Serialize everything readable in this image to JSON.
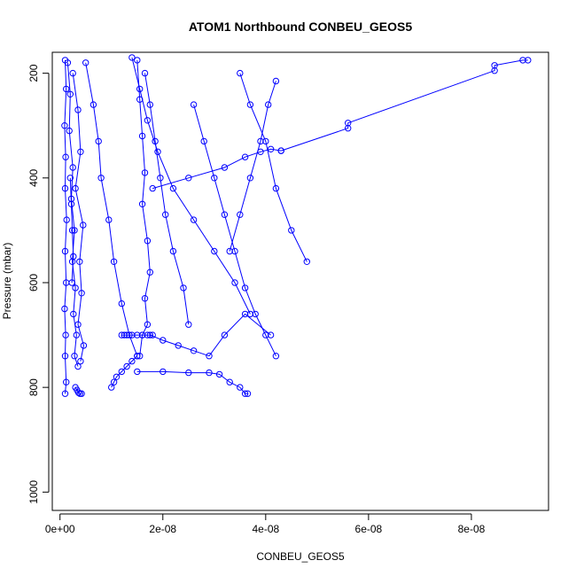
{
  "chart_data": {
    "type": "scatter",
    "title": "ATOM1 Northbound CONBEU_GEOS5",
    "xlabel": "CONBEU_GEOS5",
    "ylabel": "Pressure (mbar)",
    "xlim": [
      -1.5e-09,
      9.5e-08
    ],
    "ylim": [
      1035,
      160
    ],
    "y_reversed": true,
    "x_ticks": [
      0,
      2e-08,
      4e-08,
      6e-08,
      8e-08
    ],
    "x_tick_labels": [
      "0e+00",
      "2e-08",
      "4e-08",
      "6e-08",
      "8e-08"
    ],
    "y_ticks": [
      200,
      400,
      600,
      800,
      1000
    ],
    "y_tick_labels": [
      "200",
      "400",
      "600",
      "800",
      "1000"
    ],
    "grid": false,
    "color": "#0000ff",
    "marker": "open-circle",
    "connected": true,
    "series": [
      {
        "x": [
          1e-09,
          1.2e-09,
          9e-10,
          1.1e-09,
          1e-09,
          1.3e-09,
          1e-09,
          1.2e-09,
          9e-10,
          1.1e-09,
          1e-09,
          1.2e-09,
          1e-09
        ],
        "y": [
          175,
          230,
          300,
          360,
          420,
          480,
          540,
          600,
          650,
          700,
          740,
          790,
          812
        ]
      },
      {
        "x": [
          1.5e-09,
          2e-09,
          1.8e-09,
          2.5e-09,
          2.2e-09,
          2.8e-09,
          2.4e-09,
          3e-09,
          2.6e-09,
          3.2e-09,
          2.8e-09,
          3.5e-09
        ],
        "y": [
          180,
          240,
          310,
          380,
          440,
          500,
          560,
          610,
          660,
          700,
          740,
          760
        ]
      },
      {
        "x": [
          2.5e-09,
          3.5e-09,
          4e-09,
          3e-09,
          4.5e-09,
          3.8e-09,
          4.2e-09,
          3.5e-09,
          4.6e-09,
          4e-09
        ],
        "y": [
          200,
          270,
          350,
          420,
          490,
          560,
          620,
          680,
          720,
          750
        ]
      },
      {
        "x": [
          5e-09,
          6.5e-09,
          7.5e-09,
          8e-09,
          9.5e-09,
          1.05e-08,
          1.2e-08,
          1.35e-08,
          1.5e-08
        ],
        "y": [
          180,
          260,
          330,
          400,
          480,
          560,
          640,
          700,
          740
        ]
      },
      {
        "x": [
          1.5e-08,
          1.55e-08,
          1.6e-08,
          1.65e-08,
          1.6e-08,
          1.7e-08,
          1.75e-08,
          1.65e-08,
          1.7e-08,
          1.6e-08,
          1.55e-08
        ],
        "y": [
          175,
          250,
          320,
          390,
          450,
          520,
          580,
          630,
          680,
          700,
          740
        ]
      },
      {
        "x": [
          1.2e-08,
          1.25e-08,
          1.3e-08,
          1.4e-08,
          1.5e-08,
          1.6e-08,
          1.7e-08,
          1.8e-08
        ],
        "y": [
          700,
          700,
          700,
          700,
          700,
          700,
          700,
          700
        ]
      },
      {
        "x": [
          1.65e-08,
          1.75e-08,
          1.85e-08,
          1.95e-08,
          2.05e-08,
          2.2e-08,
          2.4e-08,
          2.5e-08
        ],
        "y": [
          200,
          260,
          330,
          400,
          470,
          540,
          610,
          680
        ]
      },
      {
        "x": [
          1e-08,
          1.05e-08,
          1.1e-08,
          1.2e-08,
          1.3e-08,
          1.4e-08,
          1.5e-08
        ],
        "y": [
          800,
          790,
          780,
          770,
          760,
          750,
          740
        ]
      },
      {
        "x": [
          2.6e-08,
          2.8e-08,
          3e-08,
          3.2e-08,
          3.4e-08,
          3.6e-08,
          3.8e-08,
          4e-08,
          4.2e-08
        ],
        "y": [
          260,
          330,
          400,
          470,
          540,
          610,
          660,
          700,
          740
        ]
      },
      {
        "x": [
          3.5e-08,
          3.7e-08,
          4e-08,
          4.2e-08,
          4.5e-08,
          4.8e-08
        ],
        "y": [
          200,
          260,
          330,
          420,
          500,
          560
        ]
      },
      {
        "x": [
          4.2e-08,
          4.05e-08,
          3.9e-08,
          3.7e-08,
          3.5e-08,
          3.3e-08
        ],
        "y": [
          215,
          260,
          330,
          400,
          470,
          540
        ]
      },
      {
        "x": [
          1.8e-08,
          2.5e-08,
          3.2e-08,
          3.6e-08,
          3.9e-08,
          4.1e-08,
          4.3e-08
        ],
        "y": [
          420,
          400,
          380,
          360,
          350,
          345,
          348
        ]
      },
      {
        "x": [
          4.3e-08,
          5.6e-08,
          5.6e-08,
          8.45e-08,
          8.45e-08,
          9e-08,
          9.1e-08
        ],
        "y": [
          348,
          305,
          295,
          195,
          185,
          175,
          175
        ]
      },
      {
        "x": [
          1.75e-08,
          2e-08,
          2.3e-08,
          2.6e-08,
          2.9e-08,
          3.2e-08,
          3.6e-08,
          4.1e-08
        ],
        "y": [
          700,
          710,
          720,
          730,
          740,
          700,
          660,
          700
        ]
      },
      {
        "x": [
          1.5e-08,
          2e-08,
          2.5e-08,
          2.9e-08,
          3.1e-08,
          3.3e-08,
          3.5e-08,
          3.6e-08,
          3.65e-08
        ],
        "y": [
          770,
          770,
          772,
          772,
          775,
          790,
          800,
          812,
          812
        ]
      },
      {
        "x": [
          2e-09,
          2.2e-09,
          2.4e-09,
          2.6e-09,
          2.3e-09
        ],
        "y": [
          400,
          450,
          500,
          550,
          600
        ]
      },
      {
        "x": [
          3e-09,
          3.3e-09,
          3.6e-09,
          3.9e-09,
          4.2e-09
        ],
        "y": [
          800,
          805,
          810,
          812,
          812
        ]
      },
      {
        "x": [
          1.4e-08,
          1.55e-08,
          1.7e-08,
          1.9e-08,
          2.2e-08,
          2.6e-08,
          3e-08,
          3.4e-08,
          3.7e-08
        ],
        "y": [
          170,
          230,
          290,
          350,
          420,
          480,
          540,
          600,
          660
        ]
      }
    ]
  }
}
